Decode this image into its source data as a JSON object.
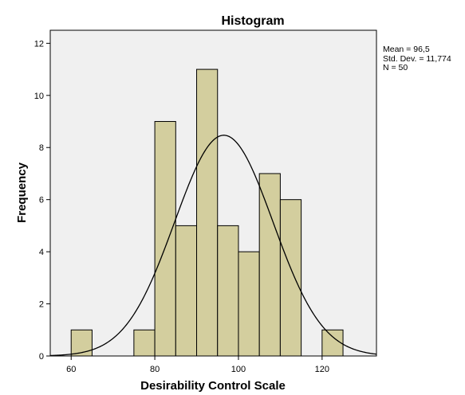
{
  "chart_data": {
    "type": "bar",
    "title": "Histogram",
    "xlabel": "Desirability Control Scale",
    "ylabel": "Frequency",
    "xlim": [
      55,
      133
    ],
    "ylim": [
      0,
      12.5
    ],
    "x_ticks": [
      60,
      80,
      100,
      120
    ],
    "y_ticks": [
      0,
      2,
      4,
      6,
      8,
      10,
      12
    ],
    "bin_width": 5,
    "bins": [
      {
        "start": 60,
        "end": 65,
        "count": 1
      },
      {
        "start": 75,
        "end": 80,
        "count": 1
      },
      {
        "start": 80,
        "end": 85,
        "count": 9
      },
      {
        "start": 85,
        "end": 90,
        "count": 5
      },
      {
        "start": 90,
        "end": 95,
        "count": 11
      },
      {
        "start": 95,
        "end": 100,
        "count": 5
      },
      {
        "start": 100,
        "end": 105,
        "count": 4
      },
      {
        "start": 105,
        "end": 110,
        "count": 7
      },
      {
        "start": 110,
        "end": 115,
        "count": 6
      },
      {
        "start": 120,
        "end": 125,
        "count": 1
      }
    ],
    "normal_curve": {
      "mean": 96.5,
      "sd": 11.774,
      "n": 50
    },
    "grid": false,
    "colors": {
      "bar_fill": "#d3ce9e",
      "bar_stroke": "#000000",
      "plot_bg": "#f0f0f0",
      "curve": "#000000"
    }
  },
  "stats": {
    "mean": "Mean = 96,5",
    "sd": "Std. Dev. = 11,774",
    "n": "N = 50"
  }
}
